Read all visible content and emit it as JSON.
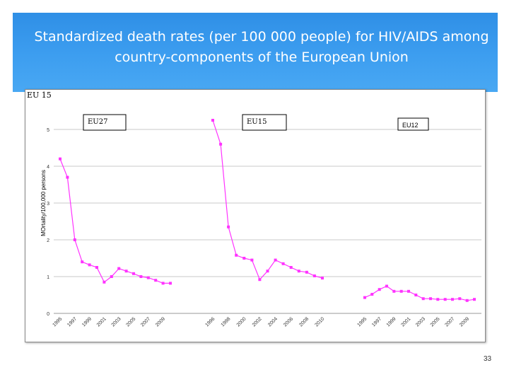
{
  "slide": {
    "title_line1": "Standardized death rates (per 100 000 people) for HIV/AIDS among",
    "title_line2": "country-components of the European Union",
    "page_number": "33"
  },
  "colors": {
    "header": "#3d9ef0",
    "series": "#ff33ff",
    "grid": "#c8c8c8"
  },
  "chart_data": {
    "type": "line",
    "corner_label": "EU 15",
    "ylabel": "MOrtality/100,000 persons",
    "ylim": [
      0,
      5.5
    ],
    "yticks": [
      "0",
      "1",
      "2",
      "3",
      "4",
      "5"
    ],
    "grid": true,
    "series": [
      {
        "name": "EU27",
        "x": [
          "1995",
          "1996",
          "1997",
          "1998",
          "1999",
          "2000",
          "2001",
          "2002",
          "2003",
          "2004",
          "2005",
          "2006",
          "2007",
          "2008",
          "2009",
          "2010"
        ],
        "values": [
          4.2,
          3.7,
          2.0,
          1.4,
          1.32,
          1.25,
          0.85,
          1.0,
          1.22,
          1.15,
          1.08,
          1.0,
          0.97,
          0.9,
          0.82,
          0.82
        ],
        "tick_labels": [
          "1995",
          "1997",
          "1999",
          "2001",
          "2003",
          "2005",
          "2007",
          "2009"
        ]
      },
      {
        "name": "EU15",
        "x": [
          "1996",
          "1997",
          "1998",
          "1999",
          "2000",
          "2001",
          "2002",
          "2003",
          "2004",
          "2005",
          "2006",
          "2007",
          "2008",
          "2009",
          "2010"
        ],
        "values": [
          5.25,
          4.6,
          2.35,
          1.58,
          1.5,
          1.45,
          0.92,
          1.15,
          1.45,
          1.35,
          1.25,
          1.15,
          1.12,
          1.02,
          0.96
        ],
        "tick_labels": [
          "1996",
          "1998",
          "2000",
          "2002",
          "2004",
          "2006",
          "2008",
          "2010"
        ]
      },
      {
        "name": "EU12",
        "x": [
          "1995",
          "1996",
          "1997",
          "1998",
          "1999",
          "2000",
          "2001",
          "2002",
          "2003",
          "2004",
          "2005",
          "2006",
          "2007",
          "2008",
          "2009",
          "2010"
        ],
        "values": [
          0.43,
          0.52,
          0.65,
          0.74,
          0.6,
          0.6,
          0.6,
          0.5,
          0.4,
          0.4,
          0.38,
          0.38,
          0.38,
          0.4,
          0.35,
          0.38
        ],
        "tick_labels": [
          "1995",
          "1997",
          "1999",
          "2001",
          "2003",
          "2005",
          "2007",
          "2009"
        ]
      }
    ]
  }
}
